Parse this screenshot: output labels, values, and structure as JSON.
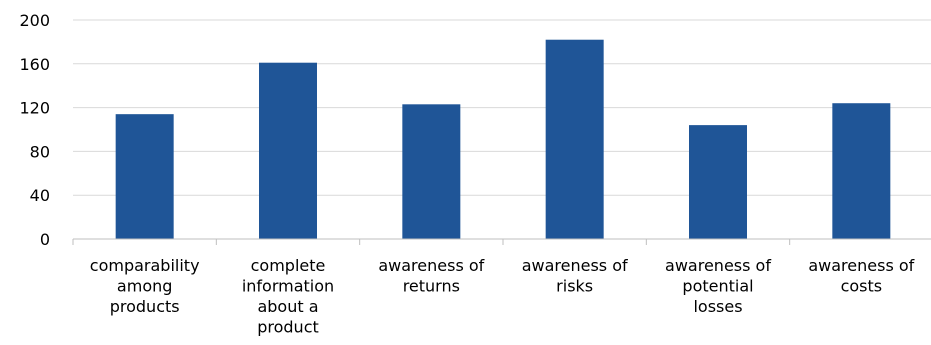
{
  "chart_data": {
    "type": "bar",
    "categories": [
      [
        "comparability",
        "among",
        "products"
      ],
      [
        "complete",
        "information",
        "about a",
        "product"
      ],
      [
        "awareness of",
        "returns"
      ],
      [
        "awareness of",
        "risks"
      ],
      [
        "awareness of",
        "potential",
        "losses"
      ],
      [
        "awareness of",
        "costs"
      ]
    ],
    "values": [
      114,
      161,
      123,
      182,
      104,
      124
    ],
    "yticks": [
      "0",
      "40",
      "80",
      "120",
      "160",
      "200"
    ],
    "ylim": [
      0,
      200
    ],
    "bar_color": "#1f5597",
    "grid": true,
    "legend": "none"
  }
}
